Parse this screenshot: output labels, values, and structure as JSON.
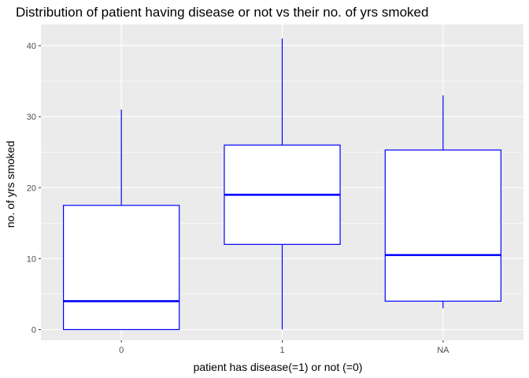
{
  "chart_data": {
    "type": "boxplot",
    "title": "Distribution of patient having disease or not vs their no. of yrs smoked",
    "xlabel": "patient has disease(=1) or not (=0)",
    "ylabel": "no. of yrs smoked",
    "categories": [
      "0",
      "1",
      "NA"
    ],
    "ylim": [
      -1.5,
      43
    ],
    "yticks": [
      0,
      10,
      20,
      30,
      40
    ],
    "grid": true,
    "legend": "none",
    "colors": {
      "box_stroke": "#0000ff",
      "box_fill": "#ffffff",
      "panel_bg": "#ebebeb",
      "grid": "#ffffff"
    },
    "boxes": [
      {
        "category": "0",
        "min": 0,
        "q1": 0,
        "median": 4,
        "q3": 17.5,
        "max": 31
      },
      {
        "category": "1",
        "min": 0,
        "q1": 12,
        "median": 19,
        "q3": 26,
        "max": 41
      },
      {
        "category": "NA",
        "min": 3,
        "q1": 4,
        "median": 10.5,
        "q3": 25.3,
        "max": 33
      }
    ]
  }
}
